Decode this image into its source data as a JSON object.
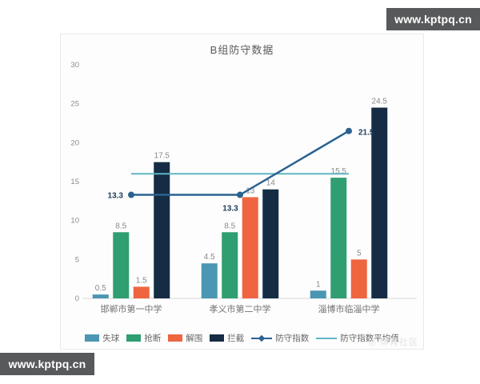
{
  "watermarks": {
    "site": "www.kptpq.cn",
    "community": "◎ 体育社区"
  },
  "chart_data": {
    "type": "bar+line",
    "title": "B组防守数据",
    "categories": [
      "邯郸市第一中学",
      "孝义市第二中学",
      "淄博市临淄中学"
    ],
    "bar_series": [
      {
        "id": "goals-conceded",
        "name": "失球",
        "color": "#4a96b3",
        "values": [
          0.5,
          4.5,
          1
        ],
        "labels": [
          "0.5",
          "4.5",
          "1"
        ]
      },
      {
        "id": "tackles",
        "name": "抢断",
        "color": "#2f9e71",
        "values": [
          8.5,
          8.5,
          15.5
        ],
        "labels": [
          "8.5",
          "8.5",
          "15.5"
        ]
      },
      {
        "id": "clearances",
        "name": "解围",
        "color": "#ee6540",
        "values": [
          1.5,
          13,
          5
        ],
        "labels": [
          "1.5",
          "13",
          "5"
        ]
      },
      {
        "id": "interceptions",
        "name": "拦截",
        "color": "#152c44",
        "values": [
          17.5,
          14,
          24.5
        ],
        "labels": [
          "17.5",
          "14",
          "24.5"
        ]
      }
    ],
    "line_series": {
      "id": "defense-index",
      "name": "防守指数",
      "color": "#2b6290",
      "values": [
        13.3,
        13.3,
        21.5
      ],
      "labels": [
        "13.3",
        "13.3",
        "21.5"
      ]
    },
    "average_line": {
      "id": "defense-index-average",
      "name": "防守指数平均值",
      "color": "#5fb6c4",
      "value": 16.0
    },
    "y_axis": {
      "min": 0,
      "max": 30,
      "step": 5,
      "ticks": [
        "0",
        "5",
        "10",
        "15",
        "20",
        "25",
        "30"
      ]
    },
    "legend_position": "bottom",
    "grid": false,
    "bar_label_color": "#8a8a8a",
    "line_label_color": "#1a3a5c",
    "axis_text_color": "#8c8c8c",
    "category_text_color": "#737373",
    "axis_line_color": "#d9d9d9"
  }
}
